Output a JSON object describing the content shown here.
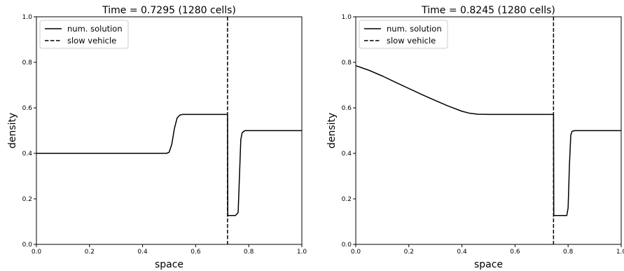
{
  "chart_data": [
    {
      "type": "line",
      "title": "Time = 0.7295 (1280 cells)",
      "xlabel": "space",
      "ylabel": "density",
      "xlim": [
        0,
        1
      ],
      "ylim": [
        0,
        1
      ],
      "xticks": [
        "0.0",
        "0.2",
        "0.4",
        "0.6",
        "0.8",
        "1.0"
      ],
      "yticks": [
        "0.0",
        "0.2",
        "0.4",
        "0.6",
        "0.8",
        "1.0"
      ],
      "legend_position": "top-left",
      "series": [
        {
          "name": "num. solution",
          "style": "solid",
          "color": "#000000",
          "points": [
            [
              0,
              0.4
            ],
            [
              0.49,
              0.4
            ],
            [
              0.5,
              0.405
            ],
            [
              0.51,
              0.44
            ],
            [
              0.52,
              0.51
            ],
            [
              0.53,
              0.555
            ],
            [
              0.54,
              0.568
            ],
            [
              0.55,
              0.571
            ],
            [
              0.72,
              0.571
            ],
            [
              0.721,
              0.127
            ],
            [
              0.75,
              0.127
            ],
            [
              0.76,
              0.14
            ],
            [
              0.765,
              0.3
            ],
            [
              0.77,
              0.46
            ],
            [
              0.775,
              0.49
            ],
            [
              0.785,
              0.5
            ],
            [
              1.0,
              0.5
            ]
          ]
        },
        {
          "name": "slow vehicle",
          "style": "dashed",
          "color": "#000000",
          "x": 0.72
        }
      ]
    },
    {
      "type": "line",
      "title": "Time = 0.8245 (1280 cells)",
      "xlabel": "space",
      "ylabel": "density",
      "xlim": [
        0,
        1
      ],
      "ylim": [
        0,
        1
      ],
      "xticks": [
        "0.0",
        "0.2",
        "0.4",
        "0.6",
        "0.8",
        "1.0"
      ],
      "yticks": [
        "0.0",
        "0.2",
        "0.4",
        "0.6",
        "0.8",
        "1.0"
      ],
      "legend_position": "top-left",
      "series": [
        {
          "name": "num. solution",
          "style": "solid",
          "color": "#000000",
          "points": [
            [
              0,
              0.785
            ],
            [
              0.05,
              0.765
            ],
            [
              0.1,
              0.74
            ],
            [
              0.15,
              0.712
            ],
            [
              0.2,
              0.685
            ],
            [
              0.25,
              0.658
            ],
            [
              0.3,
              0.632
            ],
            [
              0.35,
              0.607
            ],
            [
              0.4,
              0.585
            ],
            [
              0.43,
              0.576
            ],
            [
              0.46,
              0.572
            ],
            [
              0.5,
              0.571
            ],
            [
              0.745,
              0.571
            ],
            [
              0.746,
              0.127
            ],
            [
              0.795,
              0.127
            ],
            [
              0.8,
              0.16
            ],
            [
              0.805,
              0.35
            ],
            [
              0.81,
              0.48
            ],
            [
              0.815,
              0.497
            ],
            [
              0.825,
              0.5
            ],
            [
              1.0,
              0.5
            ]
          ]
        },
        {
          "name": "slow vehicle",
          "style": "dashed",
          "color": "#000000",
          "x": 0.745
        }
      ]
    }
  ]
}
